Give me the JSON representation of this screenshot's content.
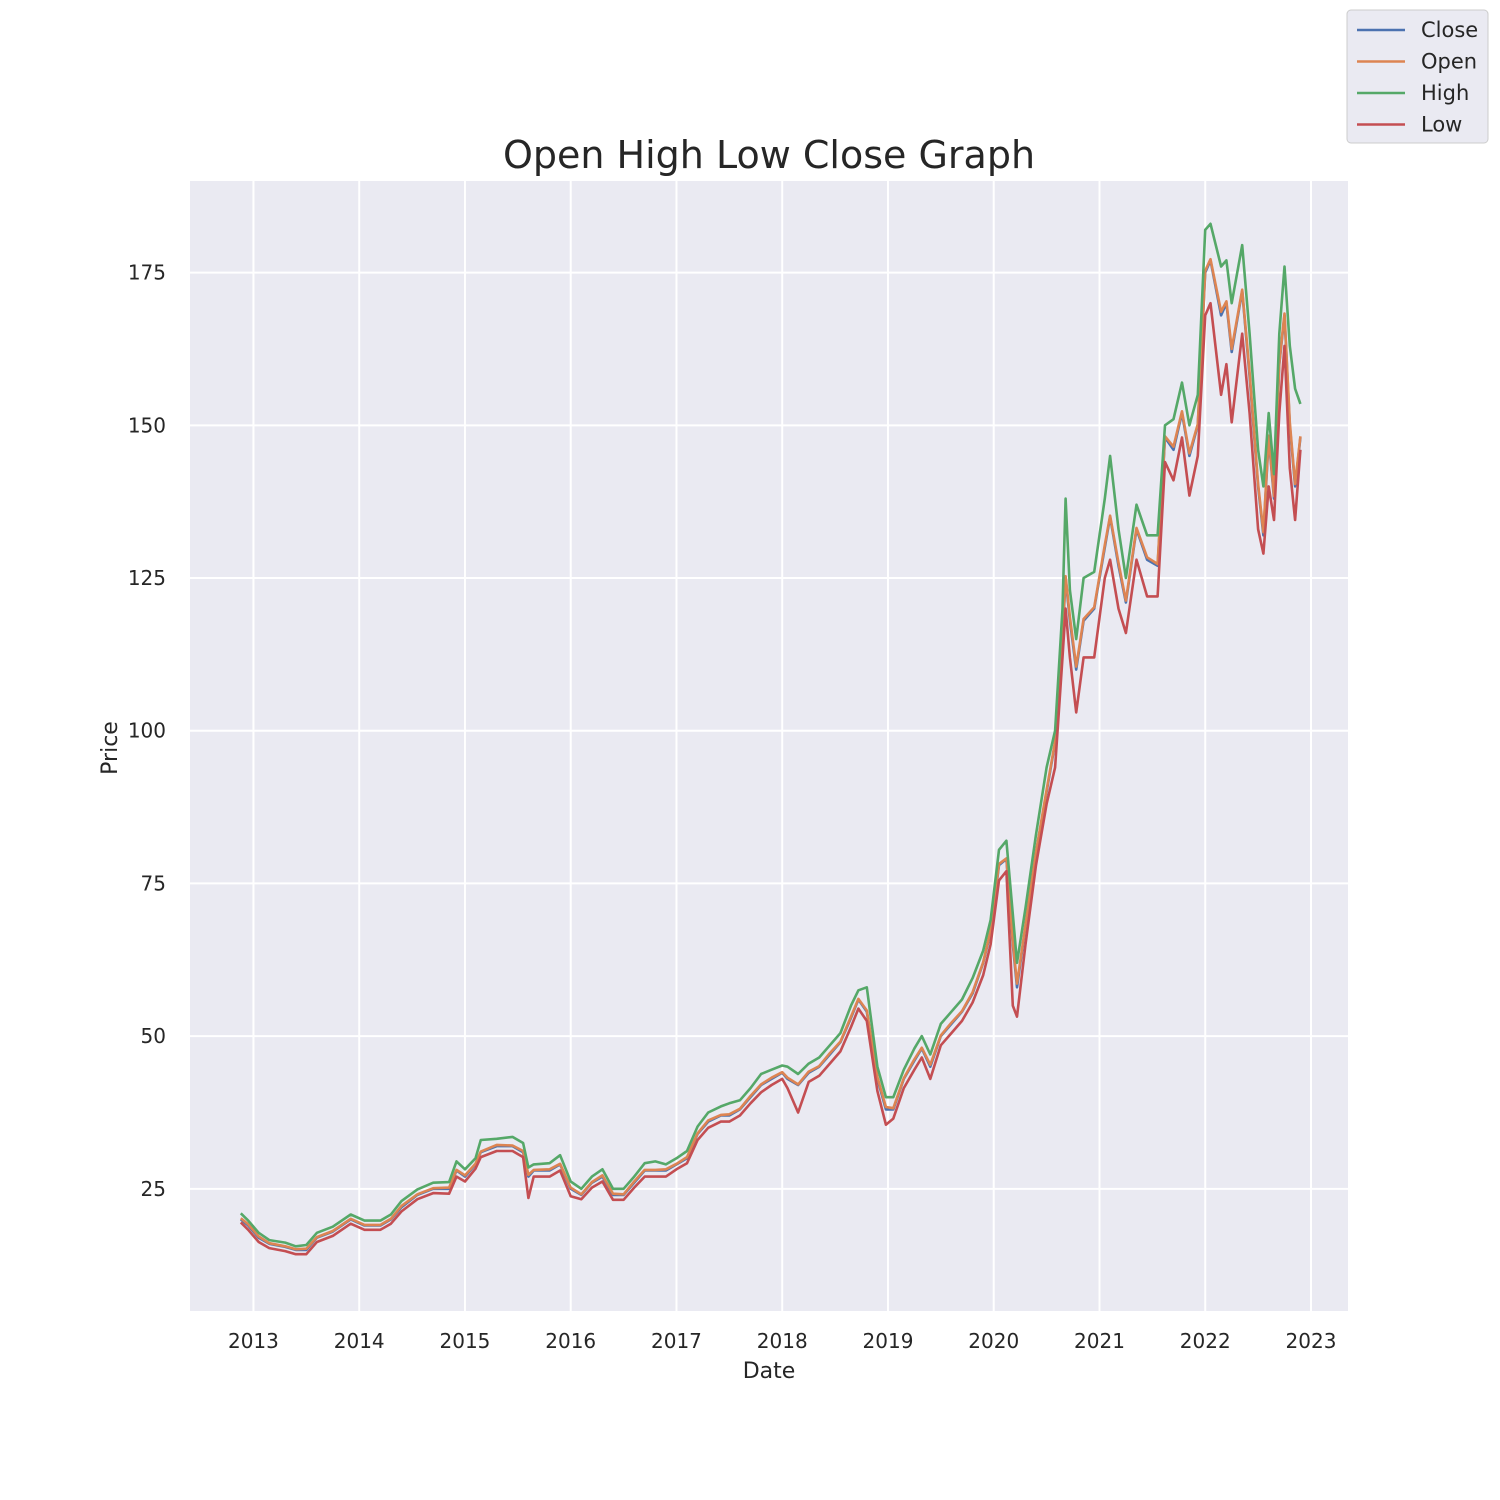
{
  "chart_data": {
    "type": "line",
    "title": "Open High Low Close Graph",
    "xlabel": "Date",
    "ylabel": "Price",
    "xlim": [
      2012.4,
      2023.35
    ],
    "ylim": [
      5,
      190
    ],
    "x_ticks": [
      2013,
      2014,
      2015,
      2016,
      2017,
      2018,
      2019,
      2020,
      2021,
      2022,
      2023
    ],
    "x_tick_labels": [
      "2013",
      "2014",
      "2015",
      "2016",
      "2017",
      "2018",
      "2019",
      "2020",
      "2021",
      "2022",
      "2023"
    ],
    "y_ticks": [
      25,
      50,
      75,
      100,
      125,
      150,
      175
    ],
    "y_tick_labels": [
      "25",
      "50",
      "75",
      "100",
      "125",
      "150",
      "175"
    ],
    "grid": true,
    "legend_position": "top-right",
    "x": [
      2012.88,
      2012.95,
      2013.05,
      2013.15,
      2013.3,
      2013.4,
      2013.5,
      2013.6,
      2013.75,
      2013.92,
      2014.05,
      2014.2,
      2014.3,
      2014.4,
      2014.55,
      2014.7,
      2014.85,
      2014.92,
      2015.0,
      2015.1,
      2015.15,
      2015.3,
      2015.45,
      2015.55,
      2015.6,
      2015.65,
      2015.8,
      2015.9,
      2016.0,
      2016.1,
      2016.2,
      2016.3,
      2016.4,
      2016.5,
      2016.6,
      2016.7,
      2016.8,
      2016.9,
      2017.0,
      2017.1,
      2017.2,
      2017.3,
      2017.42,
      2017.5,
      2017.6,
      2017.7,
      2017.8,
      2017.9,
      2018.0,
      2018.05,
      2018.15,
      2018.25,
      2018.35,
      2018.45,
      2018.55,
      2018.65,
      2018.72,
      2018.8,
      2018.9,
      2018.98,
      2019.05,
      2019.15,
      2019.25,
      2019.32,
      2019.4,
      2019.5,
      2019.6,
      2019.7,
      2019.8,
      2019.9,
      2019.97,
      2020.05,
      2020.12,
      2020.18,
      2020.22,
      2020.3,
      2020.4,
      2020.5,
      2020.58,
      2020.65,
      2020.68,
      2020.72,
      2020.78,
      2020.85,
      2020.95,
      2021.05,
      2021.1,
      2021.18,
      2021.25,
      2021.35,
      2021.45,
      2021.55,
      2021.62,
      2021.7,
      2021.78,
      2021.85,
      2021.93,
      2022.0,
      2022.05,
      2022.15,
      2022.2,
      2022.25,
      2022.35,
      2022.42,
      2022.5,
      2022.55,
      2022.6,
      2022.65,
      2022.7,
      2022.75,
      2022.8,
      2022.85,
      2022.9
    ],
    "series": [
      {
        "name": "Close",
        "color": "#4c72b0",
        "values": [
          20,
          19,
          17,
          16,
          15.5,
          15,
          15,
          17,
          18,
          20,
          19,
          19,
          20,
          22,
          24,
          25,
          25,
          28,
          27,
          29,
          31,
          32,
          32,
          31,
          27,
          28,
          28,
          29,
          25,
          24,
          26,
          27,
          24,
          24,
          26,
          28,
          28,
          28,
          29,
          30,
          34,
          36,
          37,
          37,
          38,
          40,
          42,
          43,
          44,
          43,
          42,
          44,
          45,
          47,
          49,
          53,
          56,
          54,
          43,
          38,
          38,
          43,
          46,
          48,
          45,
          50,
          52,
          54,
          57,
          62,
          67,
          78,
          79,
          65,
          58,
          68,
          80,
          90,
          98,
          115,
          125,
          118,
          110,
          118,
          120,
          130,
          135,
          127,
          121,
          133,
          128,
          127,
          148,
          146,
          152,
          145,
          150,
          175,
          177,
          168,
          170,
          162,
          172,
          158,
          140,
          132,
          148,
          138,
          160,
          168,
          150,
          140,
          148
        ]
      },
      {
        "name": "Open",
        "color": "#dd8452",
        "values": [
          20.2,
          19.2,
          17.2,
          16.1,
          15.6,
          15.1,
          15.2,
          17.1,
          18.1,
          20.1,
          19.1,
          19.1,
          20.1,
          22.2,
          24.1,
          25.1,
          25.2,
          28.1,
          27.2,
          29.1,
          31.1,
          32.2,
          32.1,
          31.2,
          27.3,
          28.1,
          28.2,
          29.1,
          25.2,
          24.1,
          26.1,
          27.2,
          24.2,
          24.1,
          26.2,
          28.1,
          28.1,
          28.2,
          29.1,
          30.2,
          34.1,
          36.2,
          37.1,
          37.2,
          38.1,
          40.2,
          42.1,
          43.2,
          44.1,
          43.2,
          42.1,
          44.2,
          45.1,
          47.2,
          49.1,
          53.2,
          56.1,
          54.2,
          43.3,
          38.4,
          38.2,
          43.1,
          46.2,
          48.1,
          45.3,
          50.1,
          52.2,
          54.1,
          57.2,
          62.1,
          67.3,
          78.2,
          79.1,
          65.5,
          58.6,
          68.2,
          80.1,
          90.3,
          98.2,
          115.4,
          125.3,
          118.6,
          110.5,
          118.3,
          120.2,
          130.4,
          135.2,
          127.5,
          121.3,
          133.2,
          128.4,
          127.3,
          148.2,
          146.5,
          152.3,
          145.4,
          150.2,
          175.3,
          177.2,
          168.6,
          170.3,
          162.5,
          172.2,
          158.6,
          140.4,
          132.5,
          148.3,
          138.4,
          160.2,
          168.3,
          150.5,
          140.4,
          148.2
        ]
      },
      {
        "name": "High",
        "color": "#55a868",
        "values": [
          21,
          19.8,
          17.8,
          16.6,
          16.2,
          15.6,
          15.8,
          17.8,
          18.8,
          20.8,
          19.8,
          19.8,
          20.8,
          23,
          24.9,
          26,
          26.1,
          29.5,
          28.2,
          30,
          33,
          33.2,
          33.5,
          32.5,
          28.5,
          29,
          29.2,
          30.5,
          26.2,
          25,
          27,
          28.2,
          25,
          25,
          27,
          29.2,
          29.5,
          29,
          30,
          31.2,
          35.2,
          37.5,
          38.5,
          39,
          39.5,
          41.5,
          43.8,
          44.5,
          45.2,
          45,
          43.8,
          45.5,
          46.5,
          48.5,
          50.5,
          55,
          57.5,
          58,
          45,
          40,
          40,
          44.5,
          48,
          50,
          47,
          52,
          54,
          56,
          59.5,
          64,
          69,
          80.5,
          82,
          70,
          62,
          71,
          83,
          94,
          100,
          120,
          138,
          123,
          115,
          125,
          126,
          138,
          145,
          133,
          125,
          137,
          132,
          132,
          150,
          151,
          157,
          150,
          155,
          182,
          183,
          176,
          177,
          170,
          179.5,
          165,
          146,
          140,
          152,
          142,
          165,
          176,
          163,
          156,
          153.5
        ]
      },
      {
        "name": "Low",
        "color": "#c44e52",
        "values": [
          19.5,
          18.3,
          16.3,
          15.3,
          14.8,
          14.3,
          14.3,
          16.3,
          17.3,
          19.3,
          18.3,
          18.3,
          19.3,
          21.3,
          23.3,
          24.3,
          24.2,
          27,
          26.2,
          28.3,
          30.2,
          31.2,
          31.2,
          30.2,
          23.5,
          27,
          27,
          28,
          23.8,
          23.3,
          25.2,
          26.2,
          23.2,
          23.2,
          25.2,
          27,
          27,
          27,
          28.2,
          29.2,
          33,
          35,
          36,
          36,
          37,
          39,
          40.8,
          42,
          43,
          41.5,
          37.5,
          42.5,
          43.5,
          45.5,
          47.5,
          51.5,
          54.5,
          52.5,
          41,
          35.5,
          36.5,
          41.5,
          44.5,
          46.5,
          43,
          48.5,
          50.5,
          52.5,
          55.5,
          60,
          65,
          75.5,
          77,
          55,
          53.2,
          65,
          78,
          88,
          94,
          112,
          120,
          112,
          103,
          112,
          112,
          125,
          128,
          120,
          116,
          128,
          122,
          122,
          144,
          141,
          148,
          138.5,
          145,
          168,
          170,
          155,
          160,
          150.5,
          165,
          152,
          133,
          129,
          140,
          134.5,
          152,
          163,
          143,
          134.5,
          146
        ]
      }
    ]
  }
}
